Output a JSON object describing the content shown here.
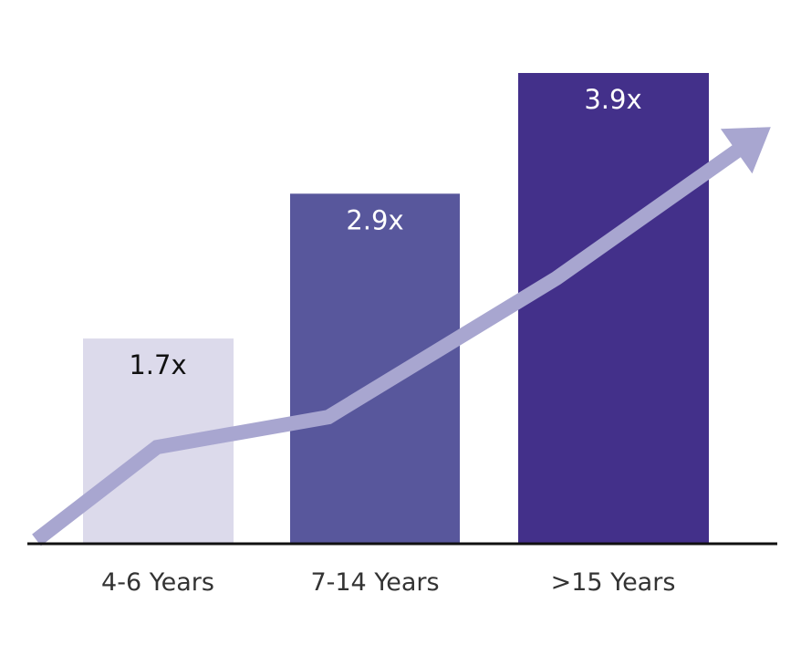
{
  "chart_data": {
    "type": "bar",
    "categories": [
      "4-6 Years",
      "7-14 Years",
      ">15 Years"
    ],
    "values": [
      1.7,
      2.9,
      3.9
    ],
    "data_labels": [
      "1.7x",
      "2.9x",
      "3.9x"
    ],
    "ylim": [
      0,
      3.9
    ],
    "grid": false,
    "legend": "none",
    "colors": {
      "bars": [
        "#dcdaeb",
        "#58579c",
        "#43308a"
      ],
      "bar_label_text": [
        "#111111",
        "#ffffff",
        "#ffffff"
      ],
      "trend_arrow": "#a8a6d0",
      "axis": "#111111"
    },
    "trend_arrow": {
      "direction": "up-right",
      "values": [
        0,
        0.8,
        1.05,
        2.2,
        3.4
      ]
    }
  }
}
